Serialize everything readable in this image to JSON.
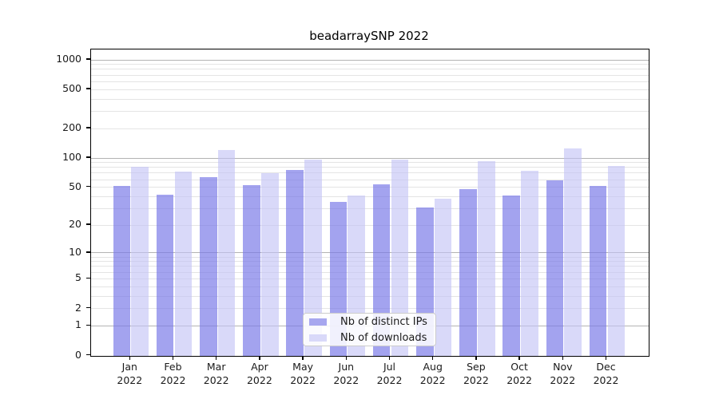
{
  "chart_data": {
    "type": "bar",
    "title": "beadarraySNP 2022",
    "categories": [
      "Jan",
      "Feb",
      "Mar",
      "Apr",
      "May",
      "Jun",
      "Jul",
      "Aug",
      "Sep",
      "Oct",
      "Nov",
      "Dec"
    ],
    "category_year": "2022",
    "series": [
      {
        "name": "Nb of distinct IPs",
        "legend_color": "#a7a7ef",
        "bar_color": "rgba(120,120,232,0.68)",
        "values": [
          52,
          42,
          64,
          53,
          76,
          35,
          54,
          31,
          48,
          41,
          59,
          52
        ]
      },
      {
        "name": "Nb of downloads",
        "legend_color": "#d9d9f9",
        "bar_color": "rgba(193,193,246,0.62)",
        "values": [
          81,
          73,
          120,
          70,
          97,
          41,
          96,
          38,
          92,
          74,
          126,
          83
        ]
      }
    ],
    "yscale": "log1p",
    "y_major_ticks": [
      1000,
      500,
      200,
      100,
      50,
      20,
      10,
      5,
      2,
      1,
      0
    ],
    "y_minor_gridlines": [
      2,
      3,
      4,
      5,
      6,
      7,
      8,
      9,
      20,
      30,
      40,
      50,
      60,
      70,
      80,
      90,
      200,
      300,
      400,
      500,
      600,
      700,
      800,
      900
    ],
    "y_major_gridlines": [
      1,
      10,
      100,
      1000
    ],
    "ylim": [
      0,
      1275
    ],
    "grid": true,
    "legend_position": "lower center",
    "gridline_major_color": "#b3b3b3",
    "gridline_minor_color": "#e4e4e4"
  }
}
